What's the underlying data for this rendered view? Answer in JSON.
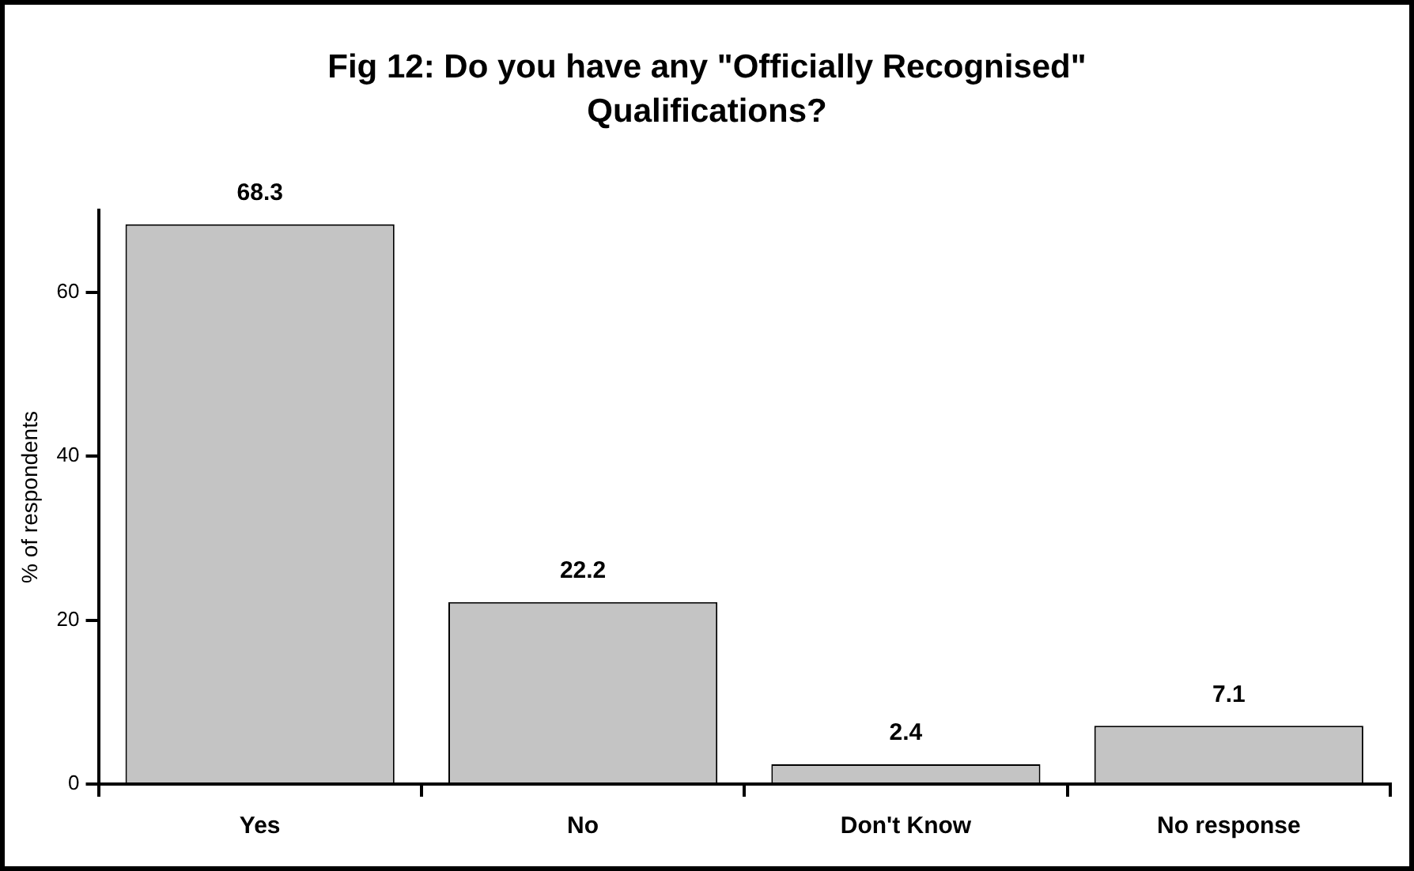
{
  "chart_data": {
    "type": "bar",
    "title": "Fig 12:  Do you have any \"Officially Recognised\" Qualifications?",
    "ylabel": "% of respondents",
    "categories": [
      "Yes",
      "No",
      "Don't Know",
      "No response"
    ],
    "values": [
      68.3,
      22.2,
      2.4,
      7.1
    ],
    "color": "#c4c4c4",
    "ylim": [
      0,
      70
    ],
    "yticks": [
      0,
      20,
      40,
      60
    ],
    "grid": false,
    "data_labels": true
  }
}
